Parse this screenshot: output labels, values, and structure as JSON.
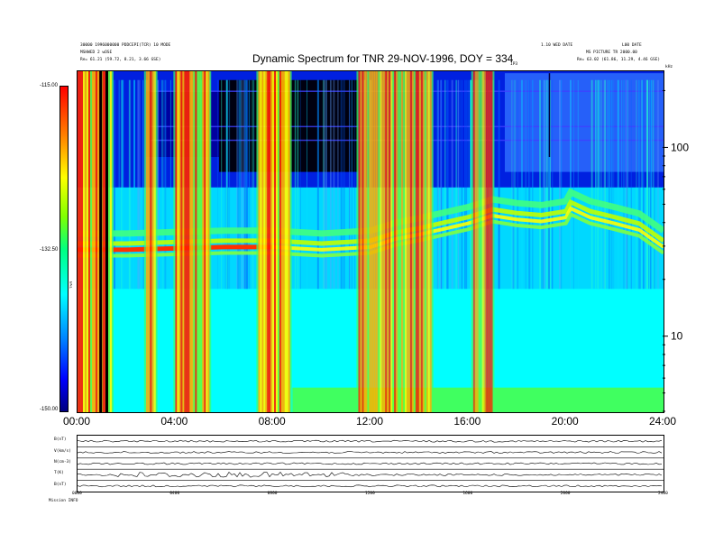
{
  "header": {
    "title": "Dynamic Spectrum for TNR 29-NOV-1996, DOY = 334",
    "left_line1": "30000 1996000000 PDDCEPI(TCR) 10 MODE",
    "left_line2": "MSHWED 2 wOSE",
    "left_line3": "Re= 61.21 (59.72, 8.21, 3.66 GSE)",
    "right_line1": "1.10 WED DATE",
    "right_line2": "L00 DATE",
    "right_line3": "MS PICTURE TR 2000.00",
    "right_line4": "Re= 63.02 (61.86, 11.29, 4.46 GSE)",
    "mid_label": "IP3",
    "corner_label": "kHz"
  },
  "colorbar": {
    "top_label": "-115.00",
    "mid_label": "-132.50",
    "bottom_label": "-150.00",
    "unit_label": "TNR",
    "stops": [
      "#000080",
      "#0000ff",
      "#0080ff",
      "#00ffff",
      "#00ff80",
      "#80ff00",
      "#ffff00",
      "#ff8000",
      "#ff0000"
    ]
  },
  "chart_data": {
    "type": "heatmap",
    "title": "Dynamic Spectrum for TNR 29-NOV-1996, DOY = 334",
    "xlabel": "",
    "ylabel": "kHz",
    "x_ticks": [
      "00:00",
      "04:00",
      "08:00",
      "12:00",
      "16:00",
      "20:00",
      "24:00"
    ],
    "x_range_hours": [
      0,
      24
    ],
    "y_scale": "log",
    "y_ticks": [
      10,
      100
    ],
    "y_tick_labels": [
      "10",
      "100"
    ],
    "y_range_khz": [
      4,
      256
    ],
    "color_scale_range": [
      -150.0,
      -115.0
    ],
    "color_scale_ticks": [
      -150.0,
      -132.5,
      -115.0
    ],
    "color_scale_tick_labels": [
      "-150.00",
      "-132.50",
      "-115.00"
    ],
    "plasma_line_khz": [
      {
        "t": 0,
        "f": 29
      },
      {
        "t": 2,
        "f": 29
      },
      {
        "t": 4,
        "f": 29.5
      },
      {
        "t": 6,
        "f": 30
      },
      {
        "t": 8,
        "f": 30
      },
      {
        "t": 10,
        "f": 29
      },
      {
        "t": 12,
        "f": 30
      },
      {
        "t": 13,
        "f": 33
      },
      {
        "t": 14,
        "f": 35
      },
      {
        "t": 16,
        "f": 40
      },
      {
        "t": 17,
        "f": 44
      },
      {
        "t": 18,
        "f": 42
      },
      {
        "t": 19,
        "f": 41
      },
      {
        "t": 20,
        "f": 43
      },
      {
        "t": 20.2,
        "f": 48
      },
      {
        "t": 21,
        "f": 43
      },
      {
        "t": 22,
        "f": 40
      },
      {
        "t": 23,
        "f": 37
      },
      {
        "t": 24,
        "f": 30
      }
    ],
    "bursts_hours": [
      {
        "start": 0.0,
        "end": 1.4,
        "intensity": 1.0
      },
      {
        "start": 2.8,
        "end": 3.2,
        "intensity": 0.8
      },
      {
        "start": 4.0,
        "end": 5.4,
        "intensity": 0.95
      },
      {
        "start": 7.4,
        "end": 8.7,
        "intensity": 1.0
      },
      {
        "start": 11.5,
        "end": 14.5,
        "intensity": 0.7
      },
      {
        "start": 16.2,
        "end": 17.0,
        "intensity": 0.5
      }
    ],
    "black_lines_hours": [
      0.95,
      1.2
    ]
  },
  "bottom_panel": {
    "row_labels": [
      "B(nT)",
      "V(km/s)",
      "N(cm-3)",
      "T(K)",
      "B(nT)"
    ],
    "x_tick_labels": [
      "0000",
      "0400",
      "0800",
      "1200",
      "1600",
      "2000",
      "2400"
    ],
    "footer_label": "Mission INFO"
  }
}
